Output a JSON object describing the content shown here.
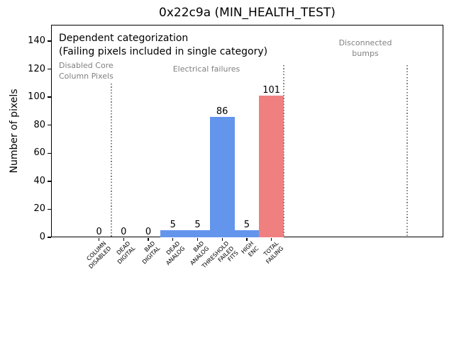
{
  "window": {
    "title": "0x22c9a (MIN_HEALTH_TEST)"
  },
  "chart_data": {
    "type": "bar",
    "title": "0x22c9a (MIN_HEALTH_TEST)",
    "xlabel": "",
    "ylabel": "Number of pixels",
    "categories": [
      "COLUMN\nDISABLED",
      "DEAD\nDIGITAL",
      "BAD\nDIGITAL",
      "DEAD\nANALOG",
      "BAD\nANALOG",
      "THRESHOLD\nFAILED\nFITS",
      "HIGH\nENC",
      "TOTAL\nFAILING"
    ],
    "values": [
      0,
      0,
      0,
      5,
      5,
      86,
      5,
      101
    ],
    "bar_value_labels": [
      "0",
      "0",
      "0",
      "5",
      "5",
      "86",
      "5",
      "101"
    ],
    "bar_colors": [
      "#6495ed",
      "#6495ed",
      "#6495ed",
      "#6495ed",
      "#6495ed",
      "#6495ed",
      "#6495ed",
      "#f08080"
    ],
    "bar_width": 1.0,
    "yticks": [
      0,
      20,
      40,
      60,
      80,
      100,
      120,
      140
    ],
    "ylim": [
      0,
      151.6
    ],
    "xlim": [
      -1.95,
      14.0
    ],
    "grid": false,
    "legend": null,
    "annotations": [
      {
        "id": "dependent-categorization",
        "text": "Dependent categorization",
        "color": "#000000"
      },
      {
        "id": "failing-note",
        "text": "(Failing pixels included in single category)",
        "color": "#000000"
      },
      {
        "id": "disabled-core-label",
        "text": "Disabled Core\nColumn Pixels",
        "color": "#808080"
      },
      {
        "id": "electrical-failures-label",
        "text": "Electrical failures",
        "color": "#808080"
      },
      {
        "id": "disconnected-bumps-label",
        "text": "Disconnected\nbumps",
        "color": "#808080"
      }
    ],
    "separators": [
      {
        "x": 0.5
      },
      {
        "x": 7.5
      },
      {
        "x": 12.5
      }
    ],
    "separator_style": {
      "color": "#7f7f7f",
      "linestyle": "dotted"
    }
  }
}
